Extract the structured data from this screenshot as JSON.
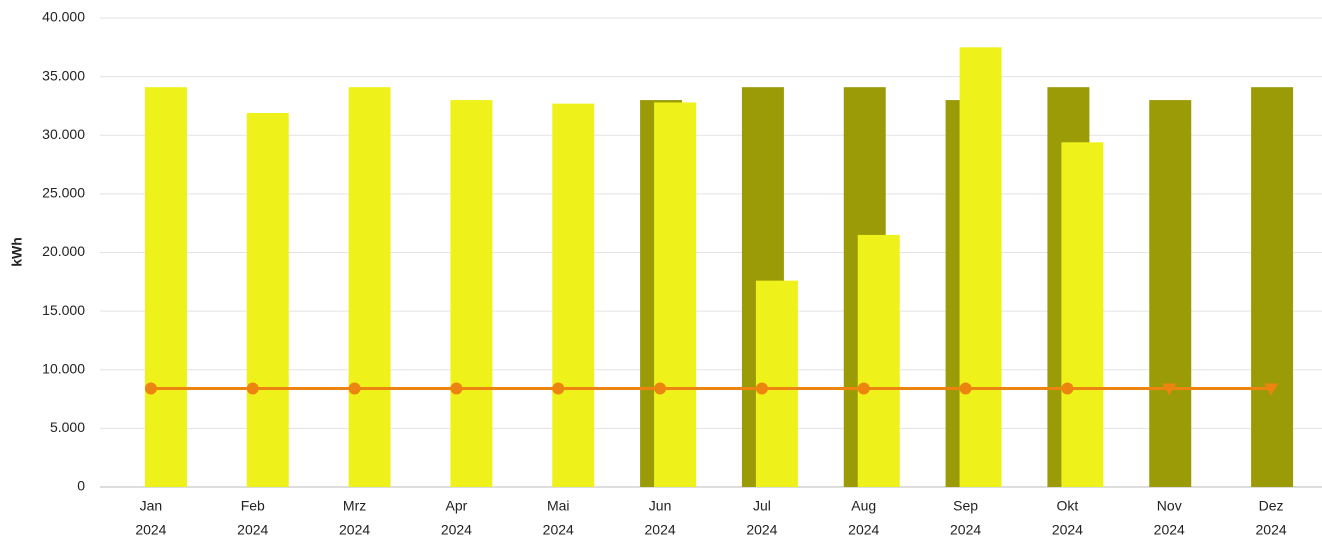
{
  "chart_data": {
    "type": "bar",
    "y_label": "kWh",
    "categories": [
      [
        "Jan",
        "2024"
      ],
      [
        "Feb",
        "2024"
      ],
      [
        "Mrz",
        "2024"
      ],
      [
        "Apr",
        "2024"
      ],
      [
        "Mai",
        "2024"
      ],
      [
        "Jun",
        "2024"
      ],
      [
        "Jul",
        "2024"
      ],
      [
        "Aug",
        "2024"
      ],
      [
        "Sep",
        "2024"
      ],
      [
        "Okt",
        "2024"
      ],
      [
        "Nov",
        "2024"
      ],
      [
        "Dez",
        "2024"
      ]
    ],
    "series": [
      {
        "type": "bar",
        "color": "#9b9b08",
        "values": [
          null,
          null,
          null,
          null,
          null,
          33000,
          34100,
          34100,
          33000,
          34100,
          33000,
          34100
        ]
      },
      {
        "type": "bar",
        "color": "#eef21a",
        "values": [
          34100,
          31900,
          34100,
          33000,
          32700,
          32800,
          17600,
          21500,
          37500,
          29400,
          null,
          null
        ]
      },
      {
        "type": "line",
        "color": "#ee8410",
        "values": [
          8400,
          8400,
          8400,
          8400,
          8400,
          8400,
          8400,
          8400,
          8400,
          8400,
          8400,
          8400
        ],
        "markers": [
          "circle",
          "circle",
          "circle",
          "circle",
          "circle",
          "circle",
          "circle",
          "circle",
          "circle",
          "circle",
          "triangle",
          "triangle"
        ]
      }
    ],
    "ylim": [
      0,
      40000
    ],
    "yticks": [
      0,
      {
        "value": 5000,
        "label": "5.000"
      },
      {
        "value": 10000,
        "label": "10.000"
      },
      {
        "value": 15000,
        "label": "15.000"
      },
      {
        "value": 20000,
        "label": "20.000"
      },
      {
        "value": 25000,
        "label": "25.000"
      },
      {
        "value": 30000,
        "label": "30.000"
      },
      {
        "value": 35000,
        "label": "35.000"
      },
      {
        "value": 40000,
        "label": "40.000"
      }
    ],
    "grid": true
  }
}
